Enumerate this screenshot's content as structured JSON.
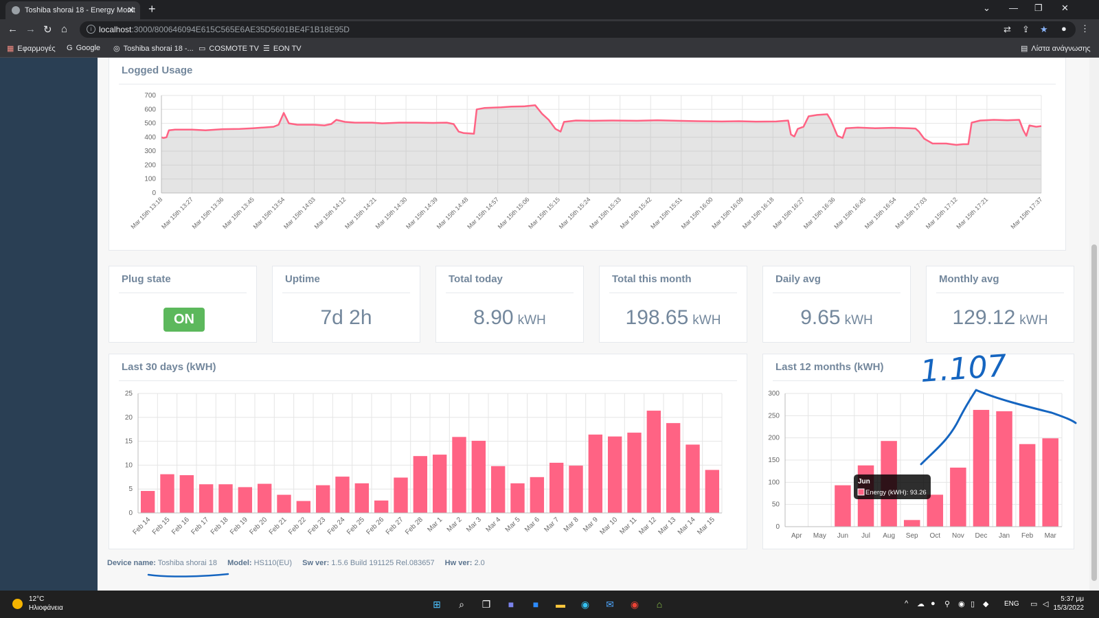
{
  "browser": {
    "tab_title": "Toshiba shorai 18 - Energy Monit",
    "url_host": "localhost",
    "url_path": ":3000/800646094E615C565E6AE35D5601BE4F1B18E95D",
    "bookmarks": [
      "Εφαρμογές",
      "Google",
      "Toshiba shorai 18 -...",
      "COSMOTE TV",
      "EON TV"
    ],
    "reading_list": "Λίστα ανάγνωσης"
  },
  "logged_usage": {
    "title": "Logged Usage",
    "chart_data": {
      "type": "area",
      "ylim": [
        0,
        700
      ],
      "yticks": [
        0,
        100,
        200,
        300,
        400,
        500,
        600,
        700
      ],
      "grid": true,
      "color": "#ff6384",
      "x_tick_labels": [
        "Mar 15th 13:18",
        "Mar 15th 13:27",
        "Mar 15th 13:36",
        "Mar 15th 13:45",
        "Mar 15th 13:54",
        "Mar 15th 14:03",
        "Mar 15th 14:12",
        "Mar 15th 14:21",
        "Mar 15th 14:30",
        "Mar 15th 14:39",
        "Mar 15th 14:48",
        "Mar 15th 14:57",
        "Mar 15th 15:06",
        "Mar 15th 15:15",
        "Mar 15th 15:24",
        "Mar 15th 15:33",
        "Mar 15th 15:42",
        "Mar 15th 15:51",
        "Mar 15th 16:00",
        "Mar 15th 16:09",
        "Mar 15th 16:18",
        "Mar 15th 16:27",
        "Mar 15th 16:36",
        "Mar 15th 16:45",
        "Mar 15th 16:54",
        "Mar 15th 17:03",
        "Mar 15th 17:12",
        "Mar 15th 17:21",
        "Mar 15th 17:37"
      ],
      "x_minutes": [
        0,
        9,
        18,
        27,
        36,
        45,
        54,
        63,
        72,
        81,
        90,
        99,
        108,
        117,
        126,
        135,
        144,
        153,
        162,
        171,
        180,
        189,
        198,
        207,
        216,
        225,
        234,
        243,
        259
      ],
      "points": [
        [
          0,
          400
        ],
        [
          0.6,
          395
        ],
        [
          1.5,
          400
        ],
        [
          2.2,
          450
        ],
        [
          4,
          455
        ],
        [
          9,
          455
        ],
        [
          13,
          450
        ],
        [
          18,
          458
        ],
        [
          23,
          460
        ],
        [
          27,
          465
        ],
        [
          30,
          470
        ],
        [
          33,
          475
        ],
        [
          34.5,
          490
        ],
        [
          36,
          575
        ],
        [
          37.5,
          500
        ],
        [
          40,
          490
        ],
        [
          45,
          490
        ],
        [
          48,
          485
        ],
        [
          50,
          495
        ],
        [
          51.5,
          525
        ],
        [
          54,
          510
        ],
        [
          57,
          505
        ],
        [
          62,
          505
        ],
        [
          65,
          500
        ],
        [
          70,
          505
        ],
        [
          75,
          505
        ],
        [
          80,
          503
        ],
        [
          84,
          505
        ],
        [
          86,
          495
        ],
        [
          87.5,
          440
        ],
        [
          89,
          430
        ],
        [
          92,
          425
        ],
        [
          92.8,
          600
        ],
        [
          95,
          610
        ],
        [
          100,
          615
        ],
        [
          103,
          620
        ],
        [
          107,
          622
        ],
        [
          110,
          630
        ],
        [
          112,
          570
        ],
        [
          114,
          525
        ],
        [
          116,
          460
        ],
        [
          117.5,
          440
        ],
        [
          118.5,
          510
        ],
        [
          122,
          520
        ],
        [
          127,
          518
        ],
        [
          133,
          520
        ],
        [
          140,
          518
        ],
        [
          146,
          522
        ],
        [
          152,
          518
        ],
        [
          158,
          515
        ],
        [
          165,
          513
        ],
        [
          170,
          515
        ],
        [
          175,
          512
        ],
        [
          181,
          513
        ],
        [
          184.5,
          520
        ],
        [
          185.3,
          420
        ],
        [
          186.3,
          405
        ],
        [
          187.3,
          460
        ],
        [
          189,
          475
        ],
        [
          190.5,
          550
        ],
        [
          193,
          560
        ],
        [
          196,
          565
        ],
        [
          197,
          525
        ],
        [
          199,
          410
        ],
        [
          200.5,
          395
        ],
        [
          201.5,
          465
        ],
        [
          205,
          470
        ],
        [
          210,
          465
        ],
        [
          215,
          468
        ],
        [
          220,
          465
        ],
        [
          222,
          462
        ],
        [
          223,
          440
        ],
        [
          224.5,
          390
        ],
        [
          227,
          355
        ],
        [
          231,
          355
        ],
        [
          234,
          345
        ],
        [
          236,
          350
        ],
        [
          237.5,
          350
        ],
        [
          238.5,
          505
        ],
        [
          241,
          520
        ],
        [
          245,
          525
        ],
        [
          249,
          522
        ],
        [
          252.5,
          525
        ],
        [
          253.7,
          450
        ],
        [
          254.6,
          410
        ],
        [
          255.5,
          485
        ],
        [
          257.5,
          475
        ],
        [
          259,
          480
        ]
      ]
    }
  },
  "stats": [
    {
      "label": "Plug state",
      "badge": "ON"
    },
    {
      "label": "Uptime",
      "value": "7d 2h"
    },
    {
      "label": "Total today",
      "value": "8.90",
      "unit": "kWH"
    },
    {
      "label": "Total this month",
      "value": "198.65",
      "unit": "kWH"
    },
    {
      "label": "Daily avg",
      "value": "9.65",
      "unit": "kWH"
    },
    {
      "label": "Monthly avg",
      "value": "129.12",
      "unit": "kWH"
    }
  ],
  "last30": {
    "title": "Last 30 days (kWH)",
    "chart_data": {
      "type": "bar",
      "ylim": [
        0,
        25
      ],
      "yticks": [
        0,
        5,
        10,
        15,
        20,
        25
      ],
      "grid": true,
      "color": "#ff6384",
      "categories": [
        "Feb 14",
        "Feb 15",
        "Feb 16",
        "Feb 17",
        "Feb 18",
        "Feb 19",
        "Feb 20",
        "Feb 21",
        "Feb 22",
        "Feb 23",
        "Feb 24",
        "Feb 25",
        "Feb 26",
        "Feb 27",
        "Feb 28",
        "Mar 1",
        "Mar 2",
        "Mar 3",
        "Mar 4",
        "Mar 5",
        "Mar 6",
        "Mar 7",
        "Mar 8",
        "Mar 9",
        "Mar 10",
        "Mar 11",
        "Mar 12",
        "Mar 13",
        "Mar 14",
        "Mar 15"
      ],
      "values": [
        4.6,
        8.1,
        7.9,
        6.0,
        6.0,
        5.4,
        6.1,
        3.8,
        2.5,
        5.8,
        7.6,
        6.2,
        2.6,
        7.4,
        11.9,
        12.2,
        15.9,
        15.1,
        9.8,
        6.2,
        7.5,
        10.5,
        9.9,
        16.4,
        16.0,
        16.8,
        21.4,
        18.8,
        14.3,
        9.0
      ]
    }
  },
  "last12": {
    "title": "Last 12 months (kWH)",
    "chart_data": {
      "type": "bar",
      "ylim": [
        0,
        300
      ],
      "yticks": [
        0,
        50,
        100,
        150,
        200,
        250,
        300
      ],
      "grid": true,
      "color": "#ff6384",
      "categories": [
        "Apr",
        "May",
        "Jun",
        "Jul",
        "Aug",
        "Sep",
        "Oct",
        "Nov",
        "Dec",
        "Jan",
        "Feb",
        "Mar"
      ],
      "values": [
        0,
        0,
        93.26,
        138,
        193,
        15,
        72,
        133,
        263,
        260,
        186,
        199
      ],
      "tooltip": {
        "title": "Jun",
        "label": "Energy (kWH): 93.26"
      },
      "annotation": {
        "text": "1.107",
        "color": "#1565c0"
      }
    }
  },
  "footer": [
    {
      "label": "Device name:",
      "value": "Toshiba shorai 18"
    },
    {
      "label": "Model:",
      "value": "HS110(EU)"
    },
    {
      "label": "Sw ver:",
      "value": "1.5.6 Build 191125 Rel.083657"
    },
    {
      "label": "Hw ver:",
      "value": "2.0"
    }
  ],
  "taskbar": {
    "temp": "12°C",
    "weather": "Ηλιοφάνεια",
    "lang": "ENG",
    "time": "5:37 μμ",
    "date": "15/3/2022"
  }
}
